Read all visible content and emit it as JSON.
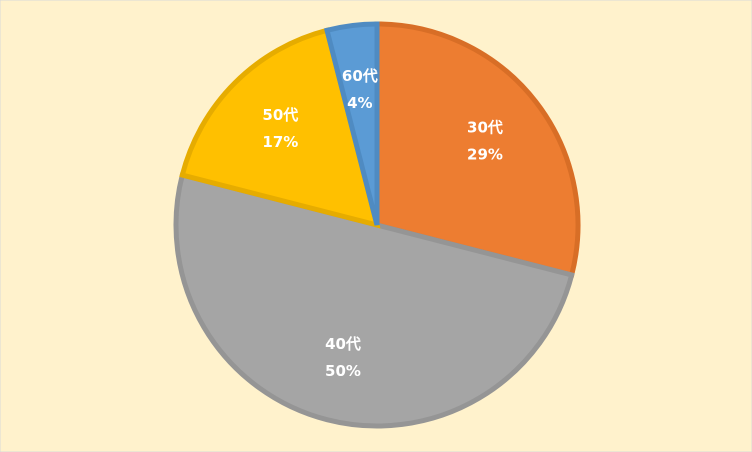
{
  "chart_data": {
    "type": "pie",
    "categories": [
      "30代",
      "40代",
      "50代",
      "60代"
    ],
    "values": [
      29,
      50,
      17,
      4
    ],
    "value_labels": [
      "29%",
      "50%",
      "17%",
      "4%"
    ],
    "colors": [
      "#ED7D31",
      "#A5A5A5",
      "#FFC000",
      "#5B9BD5"
    ],
    "edge_colors": [
      "#D86E26",
      "#959595",
      "#E6AC00",
      "#4F8BC2"
    ]
  }
}
